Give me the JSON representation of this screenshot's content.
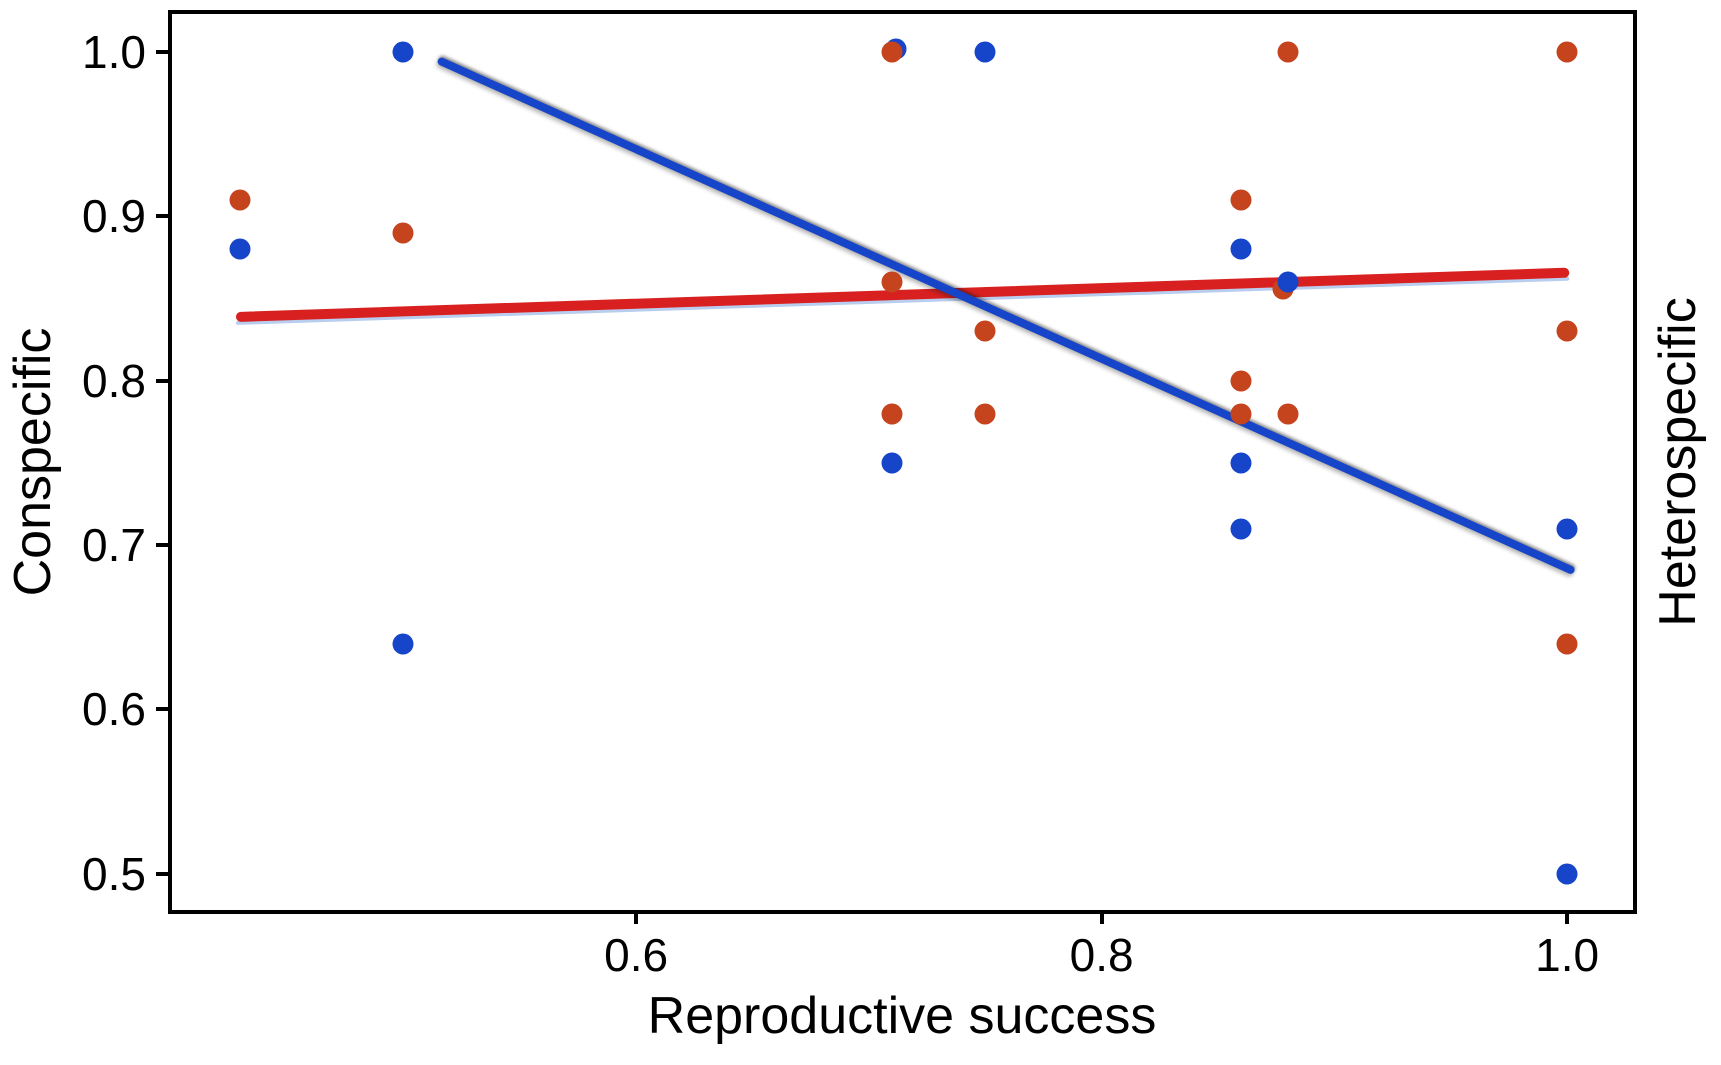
{
  "figure": {
    "background": "#ffffff",
    "x_axis_label": "Reproductive success",
    "y_axis_label_left": "Conspecific",
    "y_axis_label_right": "Heterospecific"
  },
  "chart_data": {
    "type": "scatter",
    "title": "",
    "xlabel": "Reproductive success",
    "ylabel_left": "Conspecific",
    "ylabel_right": "Heterospecific",
    "x_range": [
      0.4006,
      1.0283
    ],
    "y_range": [
      0.478,
      1.023
    ],
    "x_ticks": [
      {
        "value": 0.6,
        "label": "0.6"
      },
      {
        "value": 0.8,
        "label": "0.8"
      },
      {
        "value": 1.0,
        "label": "1.0"
      }
    ],
    "y_ticks": [
      {
        "value": 1.0,
        "label": "1.0"
      },
      {
        "value": 0.9,
        "label": "0.9"
      },
      {
        "value": 0.8,
        "label": "0.8"
      },
      {
        "value": 0.7,
        "label": "0.7"
      },
      {
        "value": 0.6,
        "label": "0.6"
      },
      {
        "value": 0.5,
        "label": "0.5"
      }
    ],
    "grid": false,
    "legend": false,
    "series_meta": {
      "con": {
        "name": "Conspecific",
        "dot_color": "#1645C9"
      },
      "het": {
        "name": "Heterospecific",
        "dot_color": "#C5431D"
      }
    },
    "points": [
      {
        "x": 0.7115,
        "y": 1.002,
        "series": "con"
      },
      {
        "x": 0.43,
        "y": 0.91,
        "series": "het"
      },
      {
        "x": 0.5,
        "y": 0.89,
        "series": "het"
      },
      {
        "x": 0.71,
        "y": 1.0,
        "series": "het"
      },
      {
        "x": 0.71,
        "y": 0.86,
        "series": "het"
      },
      {
        "x": 0.71,
        "y": 0.78,
        "series": "het"
      },
      {
        "x": 0.75,
        "y": 0.83,
        "series": "het"
      },
      {
        "x": 0.75,
        "y": 0.78,
        "series": "het"
      },
      {
        "x": 0.86,
        "y": 0.91,
        "series": "het"
      },
      {
        "x": 0.86,
        "y": 0.8,
        "series": "het"
      },
      {
        "x": 0.86,
        "y": 0.78,
        "series": "het"
      },
      {
        "x": 0.878,
        "y": 0.856,
        "series": "het"
      },
      {
        "x": 0.88,
        "y": 1.0,
        "series": "het"
      },
      {
        "x": 0.88,
        "y": 0.78,
        "series": "het"
      },
      {
        "x": 1.0,
        "y": 1.0,
        "series": "het"
      },
      {
        "x": 1.0,
        "y": 0.83,
        "series": "het"
      },
      {
        "x": 1.0,
        "y": 0.64,
        "series": "het"
      },
      {
        "x": 0.43,
        "y": 0.88,
        "series": "con"
      },
      {
        "x": 0.5,
        "y": 1.0,
        "series": "con"
      },
      {
        "x": 0.5,
        "y": 0.64,
        "series": "con"
      },
      {
        "x": 0.75,
        "y": 1.0,
        "series": "con"
      },
      {
        "x": 0.71,
        "y": 0.75,
        "series": "con"
      },
      {
        "x": 0.86,
        "y": 0.88,
        "series": "con"
      },
      {
        "x": 0.86,
        "y": 0.75,
        "series": "con"
      },
      {
        "x": 0.86,
        "y": 0.71,
        "series": "con"
      },
      {
        "x": 0.88,
        "y": 0.86,
        "series": "con"
      },
      {
        "x": 1.0,
        "y": 0.71,
        "series": "con"
      },
      {
        "x": 1.0,
        "y": 0.5,
        "series": "con"
      }
    ],
    "trend_lines": [
      {
        "series": "het",
        "x1": 0.428,
        "y1": 0.839,
        "x2": 1.001,
        "y2": 0.866,
        "color": "#D92020",
        "width": 10,
        "underline_color": "#B9CDEE"
      },
      {
        "series": "con",
        "x1": 0.515,
        "y1": 0.995,
        "x2": 1.003,
        "y2": 0.684,
        "color": "#1645C9",
        "width": 8,
        "underline_color": ""
      }
    ]
  }
}
